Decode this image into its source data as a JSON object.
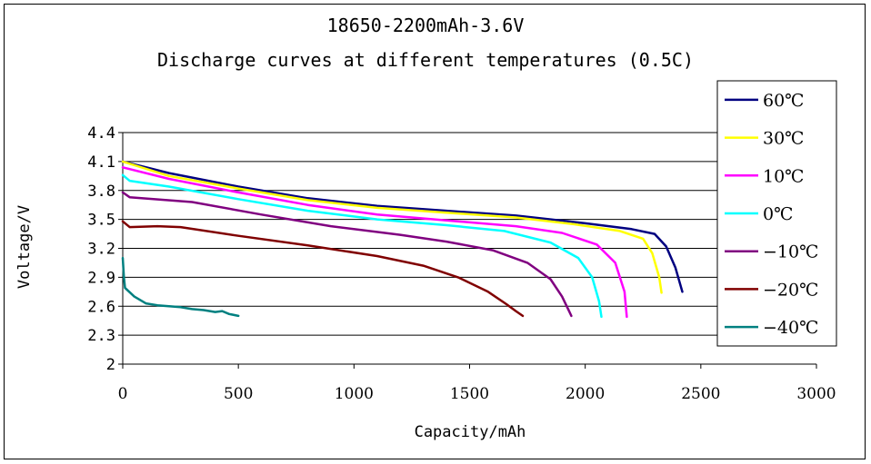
{
  "chart_data": {
    "type": "line",
    "title": "18650-2200mAh-3.6V",
    "subtitle": "Discharge curves at different temperatures (0.5C)",
    "xlabel": "Capacity/mAh",
    "ylabel": "Voltage/V",
    "xlim": [
      0,
      3000
    ],
    "ylim": [
      2,
      4.4
    ],
    "x_ticks": [
      "0",
      "500",
      "1000",
      "1500",
      "2000",
      "2500",
      "3000"
    ],
    "y_ticks": [
      "2",
      "2.3",
      "2.6",
      "2.9",
      "3.2",
      "3.5",
      "3.8",
      "4.1",
      "4.4"
    ],
    "grid": "horizontal",
    "legend_position": "right",
    "series": [
      {
        "name": "60℃",
        "color": "#000080",
        "x": [
          0,
          200,
          500,
          800,
          1100,
          1400,
          1700,
          2000,
          2200,
          2300,
          2350,
          2390,
          2420
        ],
        "y": [
          4.1,
          3.98,
          3.84,
          3.72,
          3.64,
          3.59,
          3.54,
          3.46,
          3.4,
          3.35,
          3.22,
          3.0,
          2.75
        ]
      },
      {
        "name": "30℃",
        "color": "#FFFF00",
        "x": [
          0,
          200,
          500,
          800,
          1100,
          1400,
          1700,
          1950,
          2150,
          2250,
          2290,
          2320,
          2330
        ],
        "y": [
          4.1,
          3.95,
          3.82,
          3.7,
          3.62,
          3.57,
          3.52,
          3.45,
          3.38,
          3.3,
          3.15,
          2.9,
          2.74
        ]
      },
      {
        "name": "10℃",
        "color": "#FF00FF",
        "x": [
          0,
          200,
          500,
          800,
          1100,
          1400,
          1700,
          1900,
          2050,
          2130,
          2170,
          2180
        ],
        "y": [
          4.04,
          3.92,
          3.78,
          3.65,
          3.55,
          3.49,
          3.43,
          3.36,
          3.24,
          3.05,
          2.75,
          2.49
        ]
      },
      {
        "name": "0℃",
        "color": "#00FFFF",
        "x": [
          0,
          30,
          200,
          500,
          800,
          1100,
          1400,
          1650,
          1850,
          1970,
          2030,
          2060,
          2070
        ],
        "y": [
          3.96,
          3.9,
          3.84,
          3.71,
          3.59,
          3.5,
          3.44,
          3.38,
          3.26,
          3.1,
          2.9,
          2.65,
          2.49
        ]
      },
      {
        "name": "−10℃",
        "color": "#800080",
        "x": [
          0,
          30,
          300,
          600,
          900,
          1200,
          1400,
          1600,
          1750,
          1850,
          1900,
          1930,
          1940
        ],
        "y": [
          3.78,
          3.73,
          3.68,
          3.55,
          3.43,
          3.34,
          3.27,
          3.18,
          3.05,
          2.88,
          2.7,
          2.55,
          2.5
        ]
      },
      {
        "name": "−20℃",
        "color": "#800000",
        "x": [
          0,
          30,
          150,
          250,
          500,
          800,
          1100,
          1300,
          1450,
          1580,
          1660,
          1700,
          1730
        ],
        "y": [
          3.48,
          3.42,
          3.43,
          3.42,
          3.33,
          3.23,
          3.12,
          3.02,
          2.9,
          2.75,
          2.62,
          2.55,
          2.5
        ]
      },
      {
        "name": "−40℃",
        "color": "#008080",
        "x": [
          0,
          5,
          10,
          50,
          100,
          150,
          200,
          250,
          300,
          350,
          400,
          430,
          460,
          500
        ],
        "y": [
          3.1,
          2.9,
          2.79,
          2.7,
          2.63,
          2.61,
          2.6,
          2.59,
          2.57,
          2.56,
          2.54,
          2.55,
          2.52,
          2.5
        ]
      }
    ]
  }
}
